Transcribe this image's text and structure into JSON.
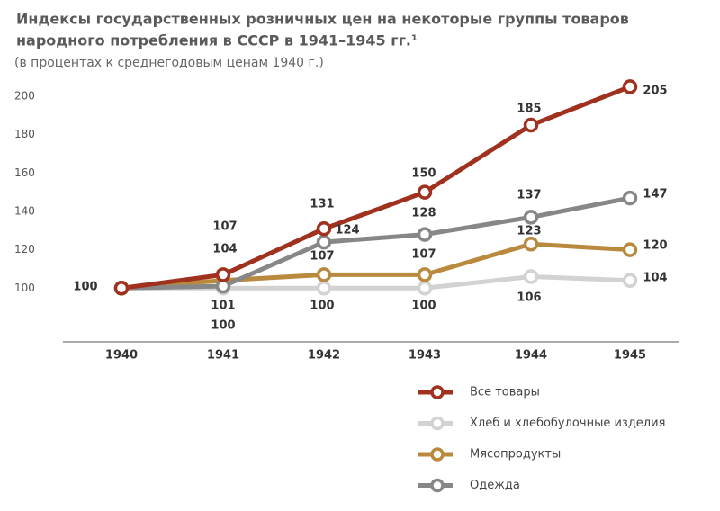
{
  "chart_data": {
    "type": "line",
    "title": [
      "Индексы государственных розничных цен на некоторые группы товаров",
      "народного потребления в СССР в 1941–1945 гг.¹"
    ],
    "subtitle": "(в процентах к среднегодовым ценам 1940 г.)",
    "categories": [
      "1940",
      "1941",
      "1942",
      "1943",
      "1944",
      "1945"
    ],
    "series": [
      {
        "name": "Все товары",
        "color": "#a0311f",
        "values": [
          100,
          107,
          131,
          150,
          185,
          205
        ]
      },
      {
        "name": "Хлеб и хлебобулочные изделия",
        "color": "#d2d2d2",
        "values": [
          100,
          100,
          100,
          100,
          106,
          104
        ]
      },
      {
        "name": "Мясопродукты",
        "color": "#b98a3e",
        "values": [
          100,
          104,
          107,
          107,
          123,
          120
        ]
      },
      {
        "name": "Одежда",
        "color": "#878787",
        "values": [
          100,
          101,
          124,
          128,
          137,
          147
        ]
      }
    ],
    "ylim": [
      72,
      208
    ],
    "yticks": [
      100,
      120,
      140,
      160,
      180,
      200
    ]
  }
}
